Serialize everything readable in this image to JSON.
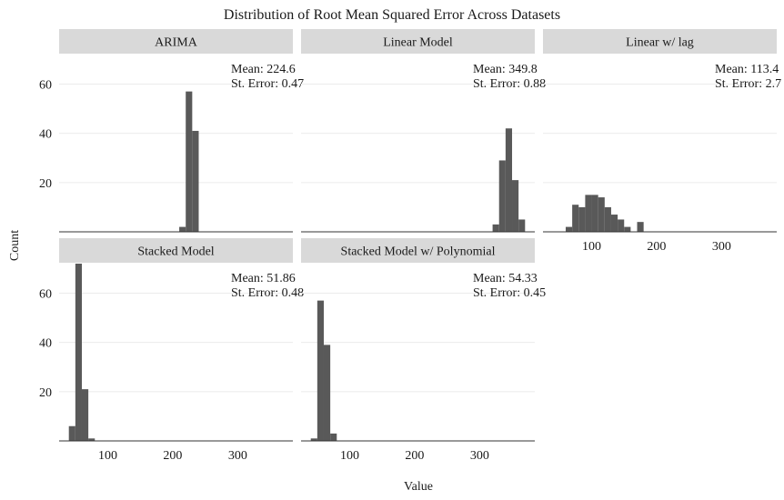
{
  "chart_data": {
    "type": "bar",
    "title": "Distribution of Root Mean Squared Error Across Datasets",
    "xlabel": "Value",
    "ylabel": "Count",
    "xlim": [
      25,
      385
    ],
    "x_ticks": [
      100,
      200,
      300
    ],
    "bin_width": 10,
    "grid": "horizontal",
    "facets": [
      {
        "name": "ARIMA",
        "ylim": [
          0,
          72
        ],
        "y_ticks": [
          20,
          40,
          60
        ],
        "stats": [
          "Mean:  224.6",
          "St. Error:  0.47"
        ],
        "bins": [
          [
            215,
            2
          ],
          [
            225,
            57
          ],
          [
            235,
            41
          ]
        ]
      },
      {
        "name": "Linear Model",
        "ylim": [
          0,
          72
        ],
        "y_ticks": [
          20,
          40,
          60
        ],
        "stats": [
          "Mean:  349.8",
          "St. Error:  0.88"
        ],
        "bins": [
          [
            325,
            3
          ],
          [
            335,
            29
          ],
          [
            345,
            42
          ],
          [
            355,
            21
          ],
          [
            365,
            5
          ]
        ]
      },
      {
        "name": "Linear w/ lag",
        "ylim": [
          0,
          72
        ],
        "y_ticks": [
          20,
          40,
          60
        ],
        "stats": [
          "Mean:  113.4",
          "St. Error:  2.7"
        ],
        "bins": [
          [
            65,
            2
          ],
          [
            75,
            11
          ],
          [
            85,
            10
          ],
          [
            95,
            15
          ],
          [
            105,
            15
          ],
          [
            115,
            14
          ],
          [
            125,
            10
          ],
          [
            135,
            7
          ],
          [
            145,
            5
          ],
          [
            155,
            2
          ],
          [
            165,
            0
          ],
          [
            175,
            4
          ]
        ]
      },
      {
        "name": "Stacked Model",
        "ylim": [
          0,
          72
        ],
        "y_ticks": [
          20,
          40,
          60
        ],
        "stats": [
          "Mean:  51.86",
          "St. Error:  0.48"
        ],
        "bins": [
          [
            45,
            6
          ],
          [
            55,
            72
          ],
          [
            65,
            21
          ],
          [
            75,
            1
          ]
        ]
      },
      {
        "name": "Stacked Model w/ Polynomial",
        "ylim": [
          0,
          72
        ],
        "y_ticks": [
          20,
          40,
          60
        ],
        "stats": [
          "Mean:  54.33",
          "St. Error:  0.45"
        ],
        "bins": [
          [
            45,
            1
          ],
          [
            55,
            57
          ],
          [
            65,
            39
          ],
          [
            75,
            3
          ]
        ]
      }
    ]
  },
  "colors": {
    "bar": "#595959",
    "strip": "#d9d9d9",
    "grid": "#ebebeb",
    "axis": "#333333"
  }
}
